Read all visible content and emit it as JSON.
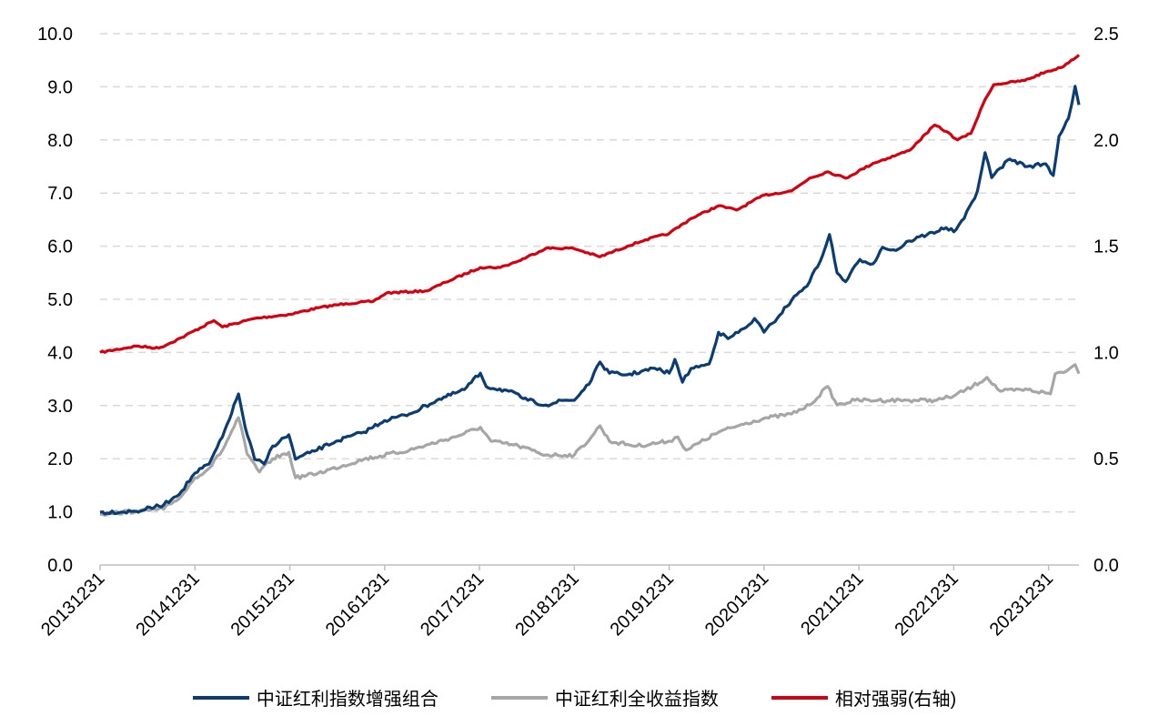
{
  "chart_data": {
    "type": "line",
    "title": "",
    "xlabel": "",
    "ylabel": "",
    "xlim": [
      2014.0,
      2024.32
    ],
    "ylim": [
      0,
      10
    ],
    "ylim_right": [
      0,
      2.5
    ],
    "grid": "horizontal-dashed",
    "legend_placement": "bottom",
    "x_ticks": [
      {
        "x": 2014,
        "label": "20131231"
      },
      {
        "x": 2015,
        "label": "20141231"
      },
      {
        "x": 2016,
        "label": "20151231"
      },
      {
        "x": 2017,
        "label": "20161231"
      },
      {
        "x": 2018,
        "label": "20171231"
      },
      {
        "x": 2019,
        "label": "20181231"
      },
      {
        "x": 2020,
        "label": "20191231"
      },
      {
        "x": 2021,
        "label": "20201231"
      },
      {
        "x": 2022,
        "label": "20211231"
      },
      {
        "x": 2023,
        "label": "20221231"
      },
      {
        "x": 2024,
        "label": "20231231"
      }
    ],
    "y_ticks_left": [
      "0.0",
      "1.0",
      "2.0",
      "3.0",
      "4.0",
      "5.0",
      "6.0",
      "7.0",
      "8.0",
      "9.0",
      "10.0"
    ],
    "y_ticks_right": [
      "0.0",
      "0.5",
      "1.0",
      "1.5",
      "2.0",
      "2.5"
    ],
    "series": [
      {
        "name": "中证红利指数增强组合",
        "color": "#0a3d73",
        "axis": "left",
        "x": [
          2014.0,
          2014.38,
          2014.67,
          2014.86,
          2015.0,
          2015.15,
          2015.29,
          2015.46,
          2015.53,
          2015.63,
          2015.73,
          2015.82,
          2015.99,
          2016.06,
          2016.21,
          2016.49,
          2016.78,
          2017.0,
          2017.26,
          2017.55,
          2017.84,
          2018.01,
          2018.07,
          2018.31,
          2018.51,
          2018.7,
          2018.89,
          2019.0,
          2019.18,
          2019.27,
          2019.37,
          2019.56,
          2019.85,
          2020.0,
          2020.06,
          2020.14,
          2020.23,
          2020.42,
          2020.52,
          2020.62,
          2020.81,
          2020.9,
          2021.0,
          2021.09,
          2021.29,
          2021.48,
          2021.62,
          2021.69,
          2021.77,
          2021.86,
          2022.01,
          2022.15,
          2022.25,
          2022.39,
          2022.53,
          2022.72,
          2022.92,
          2023.0,
          2023.11,
          2023.25,
          2023.33,
          2023.4,
          2023.49,
          2023.59,
          2023.78,
          2023.97,
          2024.05,
          2024.11,
          2024.21,
          2024.28,
          2024.32
        ],
        "y": [
          0.99,
          1.01,
          1.13,
          1.39,
          1.73,
          1.9,
          2.41,
          3.22,
          2.59,
          1.99,
          1.9,
          2.24,
          2.45,
          1.99,
          2.11,
          2.33,
          2.5,
          2.72,
          2.84,
          3.1,
          3.3,
          3.61,
          3.36,
          3.27,
          3.1,
          3.01,
          3.1,
          3.1,
          3.48,
          3.82,
          3.61,
          3.58,
          3.7,
          3.61,
          3.87,
          3.44,
          3.7,
          3.78,
          4.38,
          4.26,
          4.47,
          4.64,
          4.38,
          4.55,
          4.98,
          5.33,
          5.84,
          6.22,
          5.5,
          5.33,
          5.75,
          5.67,
          5.98,
          5.92,
          6.1,
          6.22,
          6.35,
          6.27,
          6.52,
          7.04,
          7.76,
          7.29,
          7.47,
          7.64,
          7.5,
          7.55,
          7.33,
          8.07,
          8.41,
          9.01,
          8.66
        ]
      },
      {
        "name": "中证红利全收益指数",
        "color": "#a6a6a6",
        "axis": "left",
        "x": [
          2014.0,
          2014.38,
          2014.67,
          2014.86,
          2015.0,
          2015.15,
          2015.29,
          2015.46,
          2015.55,
          2015.68,
          2015.82,
          2015.99,
          2016.06,
          2016.3,
          2016.78,
          2017.26,
          2017.74,
          2018.01,
          2018.12,
          2018.41,
          2018.7,
          2019.0,
          2019.18,
          2019.27,
          2019.37,
          2019.66,
          2020.0,
          2020.09,
          2020.18,
          2020.52,
          2020.81,
          2021.0,
          2021.29,
          2021.48,
          2021.67,
          2021.77,
          2021.96,
          2022.2,
          2022.53,
          2022.82,
          2023.0,
          2023.2,
          2023.35,
          2023.49,
          2023.78,
          2024.02,
          2024.07,
          2024.21,
          2024.28,
          2024.32
        ],
        "y": [
          0.96,
          1.01,
          1.05,
          1.3,
          1.64,
          1.82,
          2.16,
          2.77,
          2.09,
          1.75,
          2.0,
          2.12,
          1.64,
          1.73,
          1.99,
          2.16,
          2.41,
          2.59,
          2.33,
          2.24,
          2.07,
          2.07,
          2.41,
          2.62,
          2.33,
          2.24,
          2.33,
          2.41,
          2.16,
          2.5,
          2.67,
          2.76,
          2.84,
          3.01,
          3.36,
          3.01,
          3.1,
          3.1,
          3.1,
          3.1,
          3.18,
          3.36,
          3.53,
          3.27,
          3.3,
          3.22,
          3.6,
          3.68,
          3.77,
          3.6
        ]
      },
      {
        "name": "相对强弱(右轴)",
        "color": "#d7000f",
        "axis": "right",
        "x": [
          2014.0,
          2014.38,
          2014.62,
          2014.86,
          2015.2,
          2015.29,
          2015.63,
          2016.01,
          2016.3,
          2016.59,
          2016.88,
          2017.02,
          2017.45,
          2017.64,
          2018.01,
          2018.22,
          2018.41,
          2018.7,
          2018.99,
          2019.27,
          2019.56,
          2019.75,
          2020.0,
          2020.23,
          2020.52,
          2020.71,
          2021.0,
          2021.29,
          2021.48,
          2021.67,
          2021.86,
          2022.15,
          2022.53,
          2022.8,
          2022.92,
          2023.04,
          2023.18,
          2023.33,
          2023.42,
          2023.75,
          2023.97,
          2024.13,
          2024.32
        ],
        "y": [
          1.0,
          1.03,
          1.02,
          1.07,
          1.15,
          1.12,
          1.16,
          1.18,
          1.21,
          1.23,
          1.24,
          1.28,
          1.29,
          1.33,
          1.4,
          1.4,
          1.43,
          1.49,
          1.49,
          1.45,
          1.5,
          1.53,
          1.56,
          1.63,
          1.69,
          1.67,
          1.74,
          1.76,
          1.82,
          1.85,
          1.82,
          1.89,
          1.95,
          2.07,
          2.04,
          2.0,
          2.03,
          2.19,
          2.26,
          2.28,
          2.32,
          2.34,
          2.4
        ]
      }
    ]
  }
}
